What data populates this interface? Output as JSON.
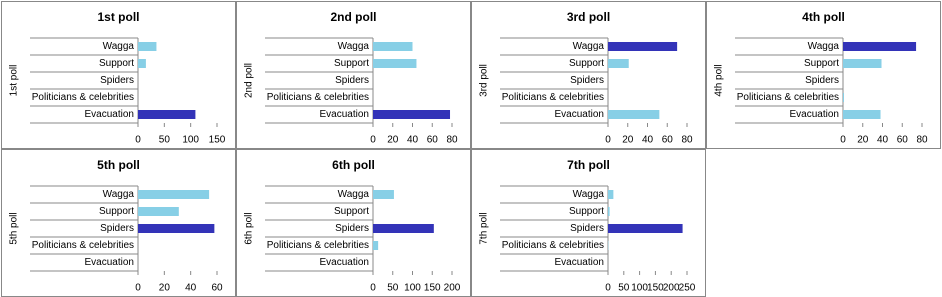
{
  "chart_data": [
    {
      "type": "bar",
      "orientation": "horizontal",
      "title": "1st poll",
      "ylabel": "1st poll",
      "categories": [
        "Wagga",
        "Support",
        "Spiders",
        "Politicians & celebrities",
        "Evacuation"
      ],
      "values": [
        35,
        15,
        0,
        0,
        109
      ],
      "colors": [
        "#87cfe6",
        "#87cfe6",
        "#87cfe6",
        "#87cfe6",
        "#3333b8"
      ],
      "xlim": [
        0,
        150
      ],
      "xticks": [
        0,
        50,
        100,
        150
      ]
    },
    {
      "type": "bar",
      "orientation": "horizontal",
      "title": "2nd poll",
      "ylabel": "2nd poll",
      "categories": [
        "Wagga",
        "Support",
        "Spiders",
        "Politicians & celebrities",
        "Evacuation"
      ],
      "values": [
        40,
        44,
        0,
        0,
        78
      ],
      "colors": [
        "#87cfe6",
        "#87cfe6",
        "#87cfe6",
        "#87cfe6",
        "#3333b8"
      ],
      "xlim": [
        0,
        80
      ],
      "xticks": [
        0,
        20,
        40,
        60,
        80
      ]
    },
    {
      "type": "bar",
      "orientation": "horizontal",
      "title": "3rd poll",
      "ylabel": "3rd poll",
      "categories": [
        "Wagga",
        "Support",
        "Spiders",
        "Politicians & celebrities",
        "Evacuation"
      ],
      "values": [
        70,
        21,
        0,
        0,
        52
      ],
      "colors": [
        "#3333b8",
        "#87cfe6",
        "#87cfe6",
        "#87cfe6",
        "#87cfe6"
      ],
      "xlim": [
        0,
        80
      ],
      "xticks": [
        0,
        20,
        40,
        60,
        80
      ]
    },
    {
      "type": "bar",
      "orientation": "horizontal",
      "title": "4th poll",
      "ylabel": "4th poll",
      "categories": [
        "Wagga",
        "Support",
        "Spiders",
        "Politicians & celebrities",
        "Evacuation"
      ],
      "values": [
        74,
        39,
        0,
        1,
        38
      ],
      "colors": [
        "#3333b8",
        "#87cfe6",
        "#87cfe6",
        "#87cfe6",
        "#87cfe6"
      ],
      "xlim": [
        0,
        80
      ],
      "xticks": [
        0,
        20,
        40,
        60,
        80
      ]
    },
    {
      "type": "bar",
      "orientation": "horizontal",
      "title": "5th poll",
      "ylabel": "5th poll",
      "categories": [
        "Wagga",
        "Support",
        "Spiders",
        "Politicians & celebrities",
        "Evacuation"
      ],
      "values": [
        54,
        31,
        58,
        0,
        0
      ],
      "colors": [
        "#87cfe6",
        "#87cfe6",
        "#3333b8",
        "#87cfe6",
        "#87cfe6"
      ],
      "xlim": [
        0,
        60
      ],
      "xticks": [
        0,
        20,
        40,
        60
      ]
    },
    {
      "type": "bar",
      "orientation": "horizontal",
      "title": "6th poll",
      "ylabel": "6th poll",
      "categories": [
        "Wagga",
        "Support",
        "Spiders",
        "Politicians & celebrities",
        "Evacuation"
      ],
      "values": [
        53,
        0,
        154,
        13,
        0
      ],
      "colors": [
        "#87cfe6",
        "#87cfe6",
        "#3333b8",
        "#87cfe6",
        "#87cfe6"
      ],
      "xlim": [
        0,
        200
      ],
      "xticks": [
        0,
        50,
        100,
        150,
        200
      ]
    },
    {
      "type": "bar",
      "orientation": "horizontal",
      "title": "7th poll",
      "ylabel": "7th poll",
      "categories": [
        "Wagga",
        "Support",
        "Spiders",
        "Politicians & celebrities",
        "Evacuation"
      ],
      "values": [
        17,
        5,
        236,
        1,
        0
      ],
      "colors": [
        "#87cfe6",
        "#87cfe6",
        "#3333b8",
        "#87cfe6",
        "#87cfe6"
      ],
      "xlim": [
        0,
        250
      ],
      "xticks": [
        0,
        50,
        100,
        150,
        200,
        250
      ]
    }
  ]
}
